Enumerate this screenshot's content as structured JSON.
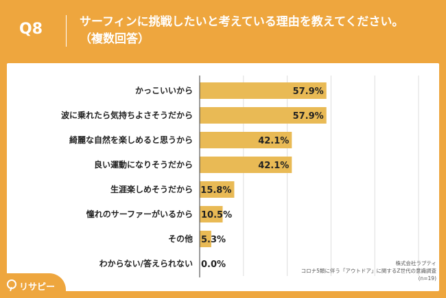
{
  "header": {
    "question_number": "Q8",
    "title_line1": "サーフィンに挑戦したいと考えている理由を教えてください。",
    "title_line2": "（複数回答）"
  },
  "chart_data": {
    "type": "bar",
    "orientation": "horizontal",
    "categories": [
      "かっこいいから",
      "波に乗れたら気持ちよさそうだから",
      "綺麗な自然を楽しめると思うから",
      "良い運動になりそうだから",
      "生涯楽しめそうだから",
      "憧れのサーファーがいるから",
      "その他",
      "わからない/答えられない"
    ],
    "values": [
      57.9,
      57.9,
      42.1,
      42.1,
      15.8,
      10.5,
      5.3,
      0.0
    ],
    "value_labels": [
      "57.9%",
      "57.9%",
      "42.1%",
      "42.1%",
      "15.8%",
      "10.5%",
      "5.3%",
      "0.0%"
    ],
    "xlim": [
      0,
      100
    ],
    "grid": true,
    "bar_color": "#E9BA55"
  },
  "footer": {
    "company": "株式会社ラプティ",
    "survey": "コロナ5類に伴う「アウトドア」に関するZ世代の意識調査",
    "sample": "(n=19)"
  },
  "logo": {
    "text": "リサピー",
    "icon": "search-icon"
  }
}
